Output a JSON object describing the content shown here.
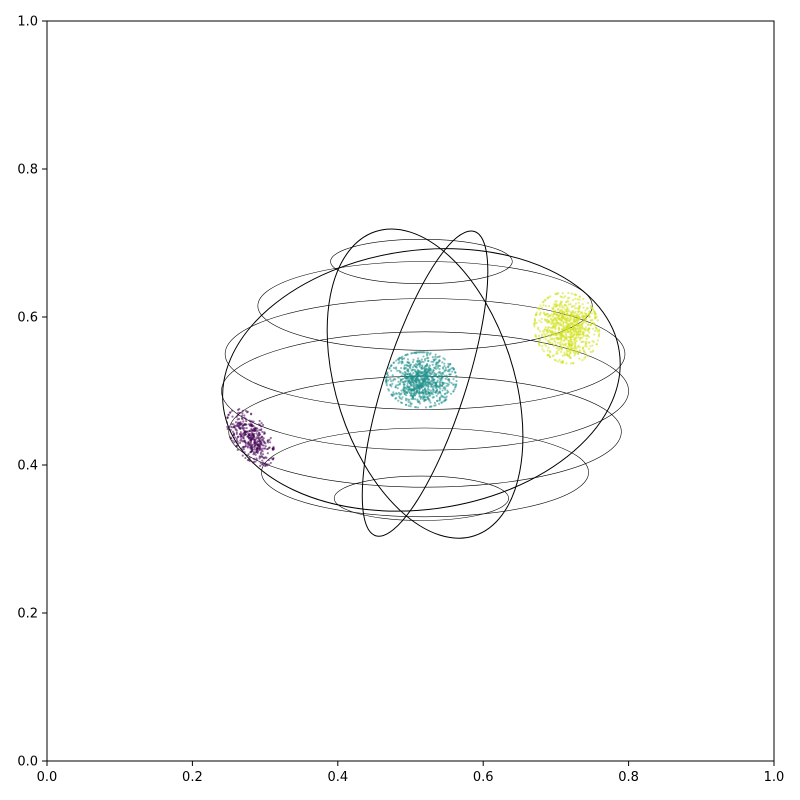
{
  "chart_data": {
    "type": "scatter",
    "title": "",
    "xlabel": "",
    "ylabel": "",
    "xlim": [
      0,
      1
    ],
    "ylim": [
      0,
      1
    ],
    "grid": false,
    "x_ticks": [
      "0.0",
      "0.2",
      "0.4",
      "0.6",
      "0.8",
      "1.0"
    ],
    "y_ticks": [
      "0.0",
      "0.2",
      "0.4",
      "0.6",
      "0.8",
      "1.0"
    ],
    "wireframe_sphere": {
      "center": [
        0.515,
        0.52
      ],
      "radii": [
        0.28,
        0.23
      ],
      "latitude_circles": [
        {
          "cx": 0.515,
          "cy": 0.675,
          "rx": 0.125,
          "ry": 0.03
        },
        {
          "cx": 0.52,
          "cy": 0.615,
          "rx": 0.23,
          "ry": 0.06
        },
        {
          "cx": 0.52,
          "cy": 0.55,
          "rx": 0.275,
          "ry": 0.075
        },
        {
          "cx": 0.52,
          "cy": 0.5,
          "rx": 0.28,
          "ry": 0.08
        },
        {
          "cx": 0.52,
          "cy": 0.445,
          "rx": 0.27,
          "ry": 0.075
        },
        {
          "cx": 0.52,
          "cy": 0.39,
          "rx": 0.225,
          "ry": 0.06
        },
        {
          "cx": 0.515,
          "cy": 0.355,
          "rx": 0.12,
          "ry": 0.03
        }
      ],
      "great_circles": [
        {
          "cx": 0.515,
          "cy": 0.515,
          "rx": 0.275,
          "ry": 0.175,
          "rotate": -8
        },
        {
          "cx": 0.52,
          "cy": 0.51,
          "rx": 0.22,
          "ry": 0.055,
          "rotate": -72
        },
        {
          "cx": 0.52,
          "cy": 0.51,
          "rx": 0.22,
          "ry": 0.12,
          "rotate": 72
        }
      ]
    },
    "clusters": [
      {
        "cx": 0.28,
        "cy": 0.437,
        "sx": 0.011,
        "sy": 0.02,
        "angle": -35,
        "count": 420,
        "color": "#440154"
      },
      {
        "cx": 0.515,
        "cy": 0.515,
        "sx": 0.022,
        "sy": 0.017,
        "angle": 0,
        "count": 900,
        "color": "#21918c"
      },
      {
        "cx": 0.715,
        "cy": 0.585,
        "sx": 0.02,
        "sy": 0.022,
        "angle": -20,
        "count": 850,
        "color": "#d2e21b"
      }
    ]
  }
}
